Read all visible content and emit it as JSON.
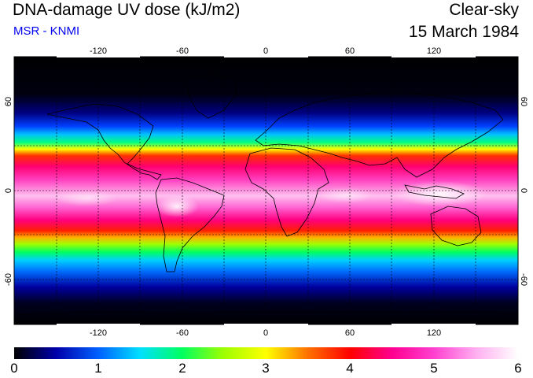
{
  "header": {
    "title": "DNA-damage UV dose (kJ/m2)",
    "source": "MSR - KNMI",
    "condition": "Clear-sky",
    "date": "15 March 1984"
  },
  "map": {
    "lon_ticks": [
      "-120",
      "-60",
      "0",
      "60",
      "120"
    ],
    "lat_ticks": [
      "60",
      "0",
      "-60"
    ]
  },
  "colorbar": {
    "labels": [
      "0",
      "1",
      "2",
      "3",
      "4",
      "5",
      "6"
    ],
    "stops": [
      "#000000",
      "#0000aa",
      "#0060ff",
      "#00e0ff",
      "#00ff60",
      "#a0ff00",
      "#ffff00",
      "#ff7000",
      "#ff0000",
      "#ff0090",
      "#ff40d0",
      "#ffb0f0",
      "#ffffff"
    ]
  }
}
